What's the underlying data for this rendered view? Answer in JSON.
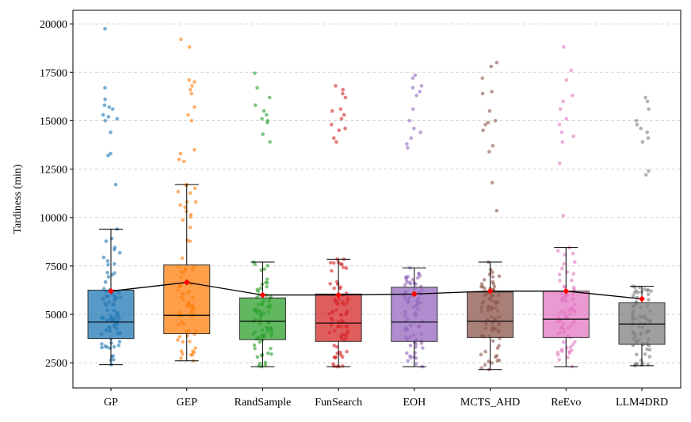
{
  "chart_data": {
    "type": "box",
    "title": "",
    "xlabel": "",
    "ylabel": "Tardiness (min)",
    "ylim": [
      1200,
      20700
    ],
    "grid": "horizontal-dashed",
    "y_ticks": [
      2500,
      5000,
      7500,
      10000,
      12500,
      15000,
      17500,
      20000
    ],
    "y_tick_labels": [
      "2500",
      "5000",
      "7500",
      "10000",
      "12500",
      "15000",
      "17500",
      "20000"
    ],
    "colors": [
      "#1f77b4",
      "#ff7f0e",
      "#2ca02c",
      "#d62728",
      "#9467bd",
      "#8c564b",
      "#e377c2",
      "#7f7f7f"
    ],
    "mean_line_color": "#000000",
    "mean_marker_color": "#ff0000",
    "categories": [
      "GP",
      "GEP",
      "RandSample",
      "FunSearch",
      "EOH",
      "MCTS_AHD",
      "ReEvo",
      "LLM4DRD"
    ],
    "boxes": [
      {
        "name": "GP",
        "whisker_low": 2400,
        "q1": 3750,
        "median": 4600,
        "q3": 6250,
        "whisker_high": 9400,
        "mean": 6200,
        "outliers": [
          11700,
          13200,
          13300,
          14400,
          15000,
          15100,
          15200,
          15300,
          15600,
          15700,
          15800,
          16100,
          16700,
          19750
        ]
      },
      {
        "name": "GEP",
        "whisker_low": 2600,
        "q1": 4000,
        "median": 4950,
        "q3": 7550,
        "whisker_high": 11700,
        "mean": 6650,
        "outliers": [
          12900,
          13000,
          13300,
          13500,
          15000,
          15300,
          15700,
          16400,
          16600,
          16800,
          17000,
          17100,
          18800,
          19200
        ]
      },
      {
        "name": "RandSample",
        "whisker_low": 2300,
        "q1": 3700,
        "median": 4650,
        "q3": 5850,
        "whisker_high": 7700,
        "mean": 6000,
        "outliers": [
          13900,
          14300,
          14900,
          15000,
          15100,
          15300,
          15500,
          15800,
          16200,
          16700,
          17450
        ]
      },
      {
        "name": "FunSearch",
        "whisker_low": 2300,
        "q1": 3600,
        "median": 4550,
        "q3": 6050,
        "whisker_high": 7850,
        "mean": 6000,
        "outliers": [
          13900,
          14100,
          14500,
          14600,
          14800,
          15100,
          15300,
          15500,
          15600,
          16200,
          16400,
          16600,
          16800
        ]
      },
      {
        "name": "EOH",
        "whisker_low": 2300,
        "q1": 3600,
        "median": 4600,
        "q3": 6400,
        "whisker_high": 7400,
        "mean": 6050,
        "outliers": [
          13600,
          13800,
          14100,
          14400,
          14600,
          15000,
          15600,
          16300,
          16500,
          16700,
          16800,
          17200,
          17350
        ]
      },
      {
        "name": "MCTS_AHD",
        "whisker_low": 2150,
        "q1": 3800,
        "median": 4650,
        "q3": 6150,
        "whisker_high": 7700,
        "mean": 6200,
        "outliers": [
          10350,
          11800,
          13400,
          13700,
          14500,
          14800,
          14900,
          15000,
          15500,
          16400,
          16500,
          17200,
          17800,
          18000
        ]
      },
      {
        "name": "ReEvo",
        "whisker_low": 2300,
        "q1": 3800,
        "median": 4750,
        "q3": 6200,
        "whisker_high": 8450,
        "mean": 6200,
        "outliers": [
          10100,
          12800,
          13900,
          14200,
          14400,
          14800,
          15100,
          15600,
          16000,
          16300,
          17100,
          17600,
          18800
        ]
      },
      {
        "name": "LLM4DRD",
        "whisker_low": 2350,
        "q1": 3450,
        "median": 4500,
        "q3": 5600,
        "whisker_high": 6450,
        "mean": 5800,
        "outliers": [
          12200,
          12400,
          13900,
          14100,
          14400,
          14600,
          14800,
          15000,
          15600,
          16000,
          16200
        ]
      }
    ]
  }
}
